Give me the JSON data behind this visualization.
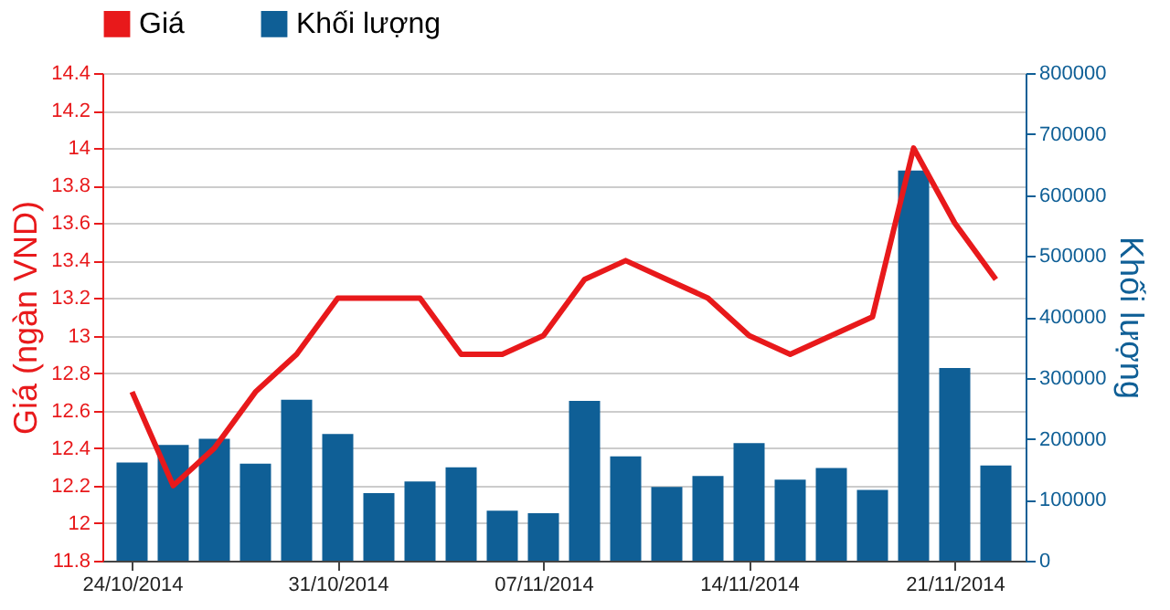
{
  "chart_data": {
    "type": "bar",
    "categories": [
      "24/10/2014",
      null,
      null,
      null,
      null,
      "31/10/2014",
      null,
      null,
      null,
      null,
      "07/11/2014",
      null,
      null,
      null,
      null,
      "14/11/2014",
      null,
      null,
      null,
      null,
      "21/11/2014",
      null
    ],
    "series": [
      {
        "name": "Giá",
        "type": "line",
        "color": "#e8191b",
        "values": [
          12.7,
          12.2,
          12.4,
          12.7,
          12.9,
          13.2,
          13.2,
          13.2,
          12.9,
          12.9,
          13.0,
          13.3,
          13.4,
          13.3,
          13.2,
          13.0,
          12.9,
          13.0,
          13.1,
          14.0,
          13.6,
          13.3
        ]
      },
      {
        "name": "Khối lượng",
        "axis": "y2",
        "color": "#0f5f96",
        "values": [
          161000,
          190000,
          200000,
          159000,
          264000,
          208000,
          111000,
          130000,
          153000,
          82000,
          78000,
          262000,
          171000,
          121000,
          139000,
          193000,
          133000,
          152000,
          116000,
          640000,
          316000,
          156000
        ]
      }
    ],
    "ylabel": "Giá (ngàn VND)",
    "y2label": "Khối lượng",
    "ylim": [
      11.8,
      14.4
    ],
    "yticks": [
      11.8,
      12,
      12.2,
      12.4,
      12.6,
      12.8,
      13,
      13.2,
      13.4,
      13.6,
      13.8,
      14,
      14.2,
      14.4
    ],
    "y2lim": [
      0,
      800000
    ],
    "y2ticks": [
      0,
      100000,
      200000,
      300000,
      400000,
      500000,
      600000,
      700000,
      800000
    ],
    "grid": "y",
    "legend": "top left"
  }
}
